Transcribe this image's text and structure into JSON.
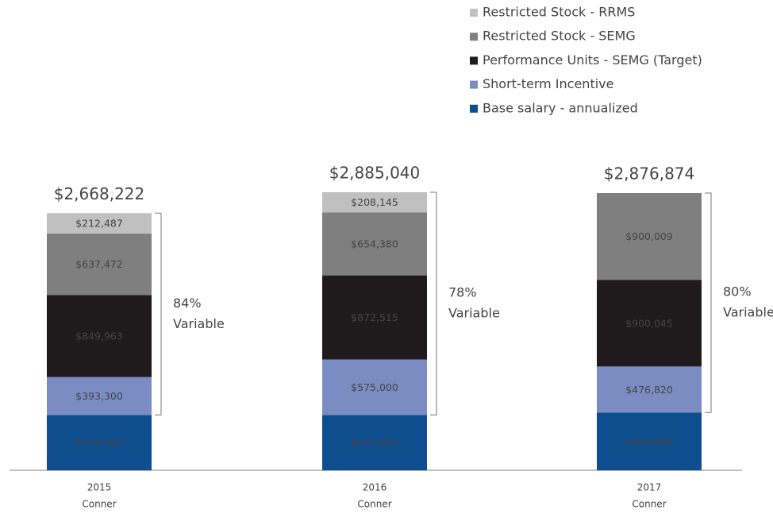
{
  "chart_data": {
    "type": "stacked_bar",
    "categories": [
      "2015",
      "2016",
      "2017"
    ],
    "category_sublabels": [
      "Conner",
      "Conner",
      "Conner"
    ],
    "series": [
      {
        "name": "Base salary - annualized",
        "color": "#0f4e8e",
        "values": [
          575000,
          575000,
          600000
        ],
        "value_labels": [
          "$575,000",
          "$575,000",
          "$600,000"
        ]
      },
      {
        "name": "Short-term Incentive",
        "color": "#7b8cc2",
        "values": [
          393300,
          575000,
          476820
        ],
        "value_labels": [
          "$393,300",
          "$575,000",
          "$476,820"
        ]
      },
      {
        "name": "Performance Units - SEMG (Target)",
        "color": "#1f1b1c",
        "values": [
          849963,
          872515,
          900045
        ],
        "value_labels": [
          "$849,963",
          "$872,515",
          "$900,045"
        ]
      },
      {
        "name": "Restricted Stock - SEMG",
        "color": "#7f7f7f",
        "values": [
          637472,
          654380,
          900009
        ],
        "value_labels": [
          "$637,472",
          "$654,380",
          "$900,009"
        ]
      },
      {
        "name": "Restricted Stock - RRMS",
        "color": "#c0c0c0",
        "values": [
          212487,
          208145,
          null
        ],
        "value_labels": [
          "$212,487",
          "$208,145",
          null
        ]
      }
    ],
    "totals": {
      "values": [
        2668222,
        2885040,
        2876874
      ],
      "value_labels": [
        "$2,668,222",
        "$2,885,040",
        "$2,876,874"
      ]
    },
    "variable": {
      "values": [
        84,
        78,
        80
      ],
      "value_labels": [
        "84%",
        "78%",
        "80%"
      ],
      "label": "Variable"
    },
    "legend": "top-right"
  }
}
